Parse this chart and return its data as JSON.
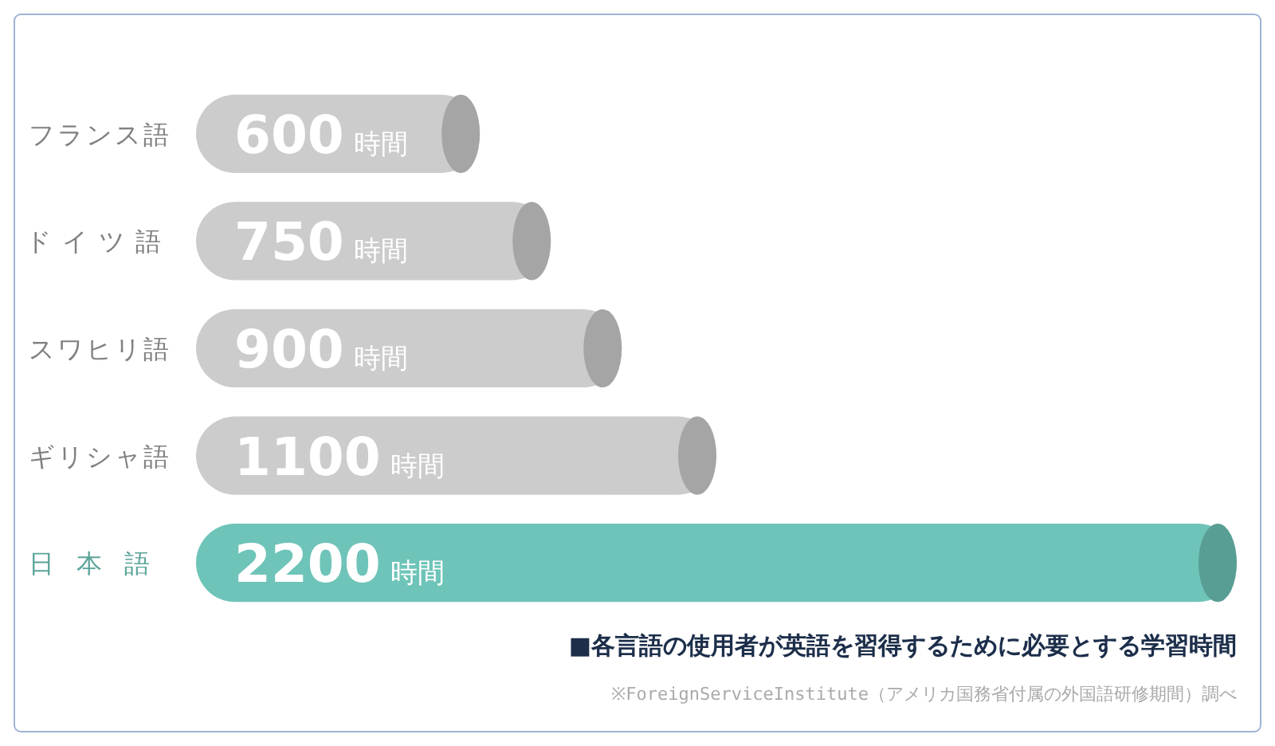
{
  "chart_data": {
    "type": "bar",
    "orientation": "horizontal",
    "categories": [
      "フランス語",
      "ドイツ語",
      "スワヒリ語",
      "ギリシャ語",
      "日本語"
    ],
    "values": [
      600,
      750,
      900,
      1100,
      2200
    ],
    "colors": [
      "#cccccc",
      "#cccccc",
      "#cccccc",
      "#cccccc",
      "#6ec4b8"
    ],
    "value_labels": [
      "600 時間",
      "750 時間",
      "900 時間",
      "1100 時間",
      "2200 時間"
    ],
    "annotations": [
      "■各言語の使用者が英語を習得するために必要とする学習時間",
      "※ForeignServiceInstitute（アメリカ国務省付属の外国語研修期間）調べ"
    ]
  }
}
